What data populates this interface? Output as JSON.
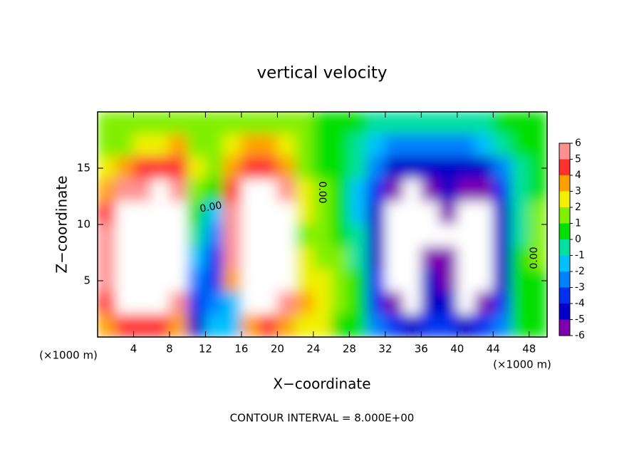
{
  "chart_data": {
    "type": "contour",
    "title": "vertical velocity",
    "x_label": "X−coordinate",
    "y_label": "Z−coordinate",
    "x_unit": "(×1000 m)",
    "x_unit_right": "(×1000 m)",
    "footer": "CONTOUR INTERVAL = 8.000E+00",
    "contour_labels": [
      "0.00",
      "0.00",
      "0.00"
    ],
    "xlim": [
      0,
      50
    ],
    "ylim": [
      0,
      20
    ],
    "xticks": [
      4,
      8,
      12,
      16,
      20,
      24,
      28,
      32,
      36,
      40,
      44,
      48
    ],
    "yticks": [
      5,
      10,
      15
    ],
    "levels": [
      -6,
      -5,
      -4,
      -3,
      -2,
      -1,
      0,
      1,
      2,
      3,
      4,
      5,
      6
    ],
    "colors": [
      "#8000b0",
      "#0000c8",
      "#0030f0",
      "#0080ff",
      "#00c0ff",
      "#00e0a0",
      "#00e000",
      "#80f000",
      "#f0f000",
      "#ffa000",
      "#ff3030",
      "#ff9090"
    ],
    "out_of_range_color": "#ffffff",
    "x": [
      1,
      3,
      5,
      7,
      9,
      11,
      13,
      15,
      17,
      19,
      21,
      23,
      25,
      27,
      29,
      31,
      33,
      35,
      37,
      39,
      41,
      43,
      45,
      47,
      49
    ],
    "y": [
      19,
      17,
      15,
      13,
      11,
      9,
      7,
      5,
      3,
      1
    ],
    "z": [
      [
        1,
        1,
        1,
        1.5,
        1.5,
        1,
        1,
        1,
        1.5,
        1.5,
        1,
        1,
        0.5,
        0.5,
        0,
        -0.5,
        -1,
        -1,
        -1,
        -1,
        -1,
        -0.5,
        0,
        0,
        0
      ],
      [
        1,
        1.5,
        2,
        2.5,
        3,
        1.5,
        1,
        2,
        3,
        3,
        2,
        1,
        0.5,
        0,
        -0.5,
        -2,
        -3,
        -3,
        -3,
        -3,
        -3,
        -2,
        -1,
        0,
        0
      ],
      [
        2,
        3,
        4,
        4.5,
        4,
        2,
        1,
        3,
        4.5,
        4.5,
        3.5,
        1.5,
        0.5,
        0,
        -1,
        -3,
        -4.5,
        -5,
        -4.5,
        -4.5,
        -5,
        -4.5,
        -3,
        -1,
        0
      ],
      [
        3.5,
        5,
        5.5,
        6,
        5,
        1.5,
        0,
        4,
        6,
        6,
        5,
        2,
        1,
        0,
        -1.5,
        -4,
        -6,
        -6.5,
        -5.5,
        -5,
        -5.5,
        -6,
        -4,
        -1,
        0.5
      ],
      [
        4.5,
        6.5,
        7,
        7,
        6,
        0,
        -2,
        5,
        7,
        7,
        6,
        2,
        1,
        0,
        -1.5,
        -4.5,
        -7,
        -7,
        -6.5,
        -6,
        -7,
        -6.5,
        -5,
        -1,
        1.5
      ],
      [
        5,
        7,
        8,
        7,
        6.5,
        -1,
        -3,
        5.5,
        7.5,
        8,
        6.5,
        1.5,
        1,
        0.5,
        -1,
        -4.5,
        -7,
        -7.5,
        -7,
        -6.5,
        -7,
        -7,
        -5,
        -0.5,
        1.5
      ],
      [
        5,
        7,
        8,
        7,
        6.5,
        -2,
        -3.5,
        5,
        7.5,
        8,
        6.5,
        2,
        1.5,
        1,
        -0.5,
        -4.5,
        -7,
        -7,
        -6,
        -6,
        -7,
        -7,
        -5,
        0,
        1
      ],
      [
        5,
        7,
        8,
        7,
        6.5,
        -3,
        -3.5,
        3,
        7,
        7.5,
        6,
        2.5,
        2,
        1.5,
        0,
        -4,
        -6.5,
        -7,
        -5,
        -5.5,
        -7,
        -6.5,
        -4.5,
        0,
        0.5
      ],
      [
        4,
        6,
        7,
        6.5,
        5,
        -4,
        -3,
        -2,
        6.5,
        6.5,
        5,
        3,
        2.5,
        1,
        0,
        -4,
        -5.5,
        -6.5,
        -5,
        -5,
        -6.5,
        -5.5,
        -4,
        0,
        0
      ],
      [
        3,
        4,
        4.5,
        4.5,
        3.5,
        -4.5,
        -2,
        -2,
        3,
        4,
        3.5,
        2.5,
        2,
        0.5,
        0,
        -3,
        -4,
        -4.5,
        -4,
        -4,
        -4.5,
        -4,
        -3,
        0,
        0
      ]
    ]
  }
}
